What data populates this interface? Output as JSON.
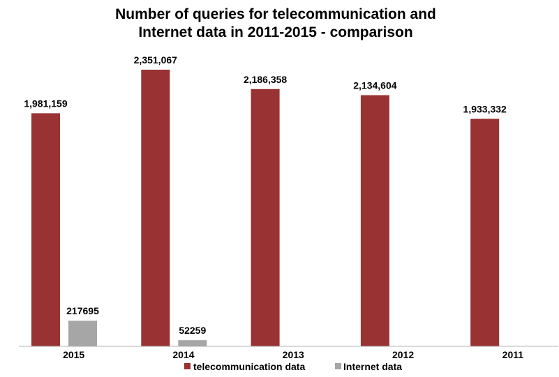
{
  "chart_data": {
    "type": "bar",
    "title_lines": [
      "Number of queries for telecommunication and",
      "Internet data in 2011-2015 - comparison"
    ],
    "categories": [
      "2015",
      "2014",
      "2013",
      "2012",
      "2011"
    ],
    "series": [
      {
        "name": "telecommunication data",
        "color": "#993333",
        "values": [
          1981159,
          2351067,
          2186358,
          2134604,
          1933332
        ],
        "labels": [
          "1,981,159",
          "2,351,067",
          "2,186,358",
          "2,134,604",
          "1,933,332"
        ]
      },
      {
        "name": "Internet data",
        "color": "#a6a6a6",
        "values": [
          217695,
          52259,
          null,
          null,
          null
        ],
        "labels": [
          "217695",
          "52259",
          "",
          "",
          ""
        ]
      }
    ],
    "ylim": [
      0,
      2351067
    ],
    "grid": false,
    "legend_position": "bottom"
  }
}
